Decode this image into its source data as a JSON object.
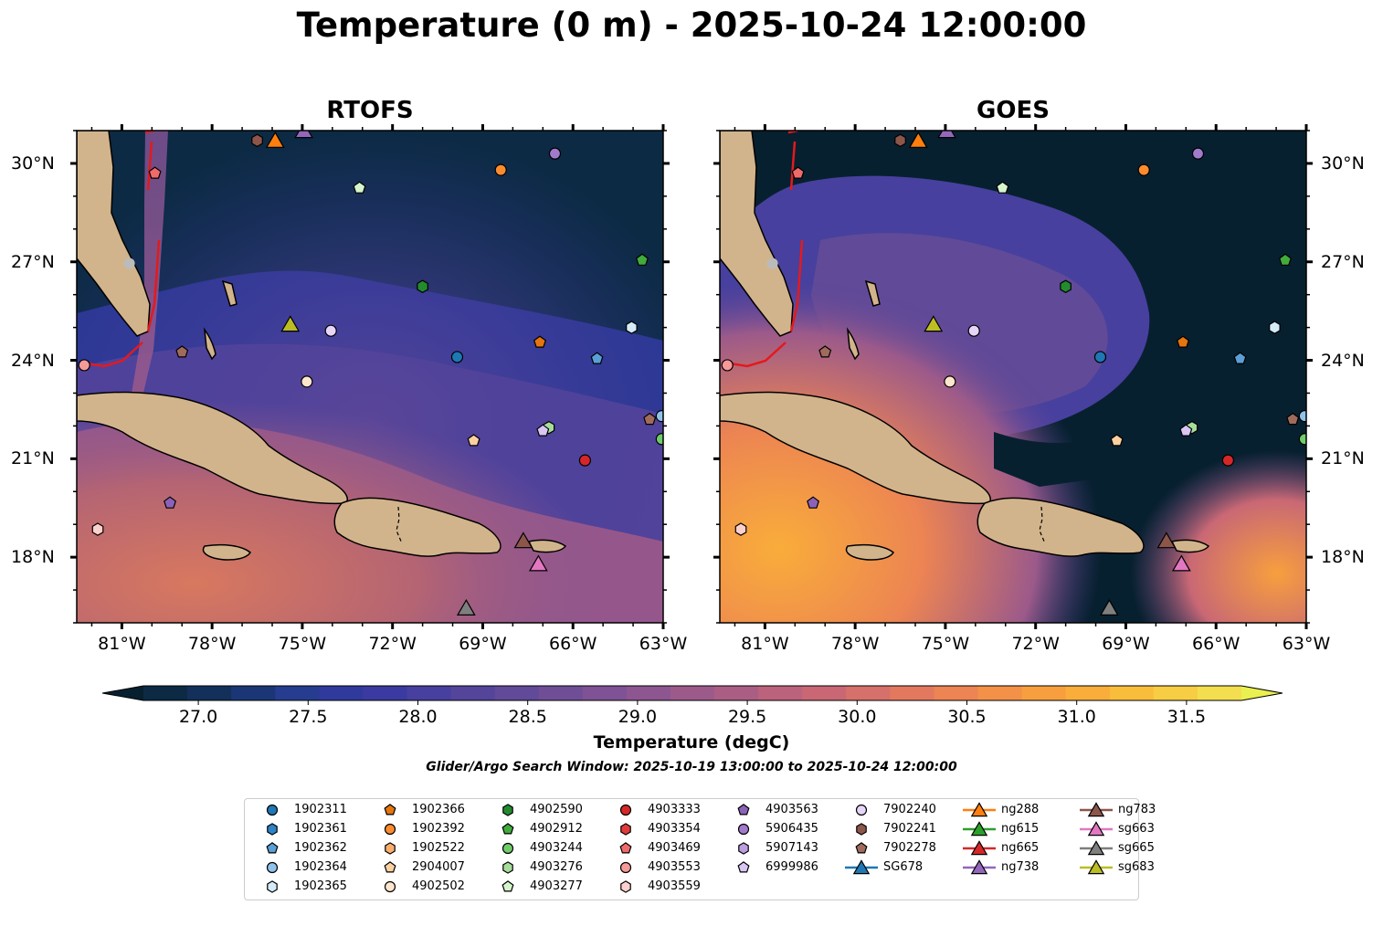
{
  "title": "Temperature (0 m) - 2025-10-24 12:00:00",
  "panels": [
    {
      "title": "RTOFS"
    },
    {
      "title": "GOES"
    }
  ],
  "axes": {
    "lon_ticks": [
      "81°W",
      "78°W",
      "75°W",
      "72°W",
      "69°W",
      "66°W",
      "63°W"
    ],
    "lat_ticks": [
      "30°N",
      "27°N",
      "24°N",
      "21°N",
      "18°N"
    ]
  },
  "colorbar": {
    "label": "Temperature (degC)",
    "min": 26.75,
    "max": 31.75,
    "ticks": [
      "27.0",
      "27.5",
      "28.0",
      "28.5",
      "29.0",
      "29.5",
      "30.0",
      "30.5",
      "31.0",
      "31.5"
    ],
    "colors": [
      "#0c2a44",
      "#13305a",
      "#1b3675",
      "#263c8f",
      "#2f3a9c",
      "#3a3aa0",
      "#47409e",
      "#54449a",
      "#614a98",
      "#704e96",
      "#7e5294",
      "#8d5690",
      "#9c5a8a",
      "#ab5e84",
      "#bb627c",
      "#c96874",
      "#d6706a",
      "#e2795f",
      "#ec8453",
      "#f49148",
      "#f79f3e",
      "#f9ad3a",
      "#f9bd3c",
      "#f7cd44",
      "#f3de4f"
    ],
    "under_color": "#07202f",
    "over_color": "#eaf04f"
  },
  "search_window": "Glider/Argo Search Window: 2025-10-19 13:00:00 to 2025-10-24 12:00:00",
  "legend": [
    {
      "id": "1902311",
      "marker": "circle",
      "color": "#1f77b4"
    },
    {
      "id": "1902361",
      "marker": "hexagon",
      "color": "#2d83c4"
    },
    {
      "id": "1902362",
      "marker": "pentagon",
      "color": "#5a9fd6"
    },
    {
      "id": "1902364",
      "marker": "circle",
      "color": "#8fc3ea"
    },
    {
      "id": "1902365",
      "marker": "hexagon",
      "color": "#d6ebf8"
    },
    {
      "id": "1902366",
      "marker": "pentagon",
      "color": "#e5750f"
    },
    {
      "id": "1902392",
      "marker": "circle",
      "color": "#fb8c2e"
    },
    {
      "id": "1902522",
      "marker": "hexagon",
      "color": "#fbae6b"
    },
    {
      "id": "2904007",
      "marker": "pentagon",
      "color": "#fdd0a2"
    },
    {
      "id": "4902502",
      "marker": "circle",
      "color": "#fee6cc"
    },
    {
      "id": "4902590",
      "marker": "hexagon",
      "color": "#238b2d"
    },
    {
      "id": "4902912",
      "marker": "pentagon",
      "color": "#41ab3c"
    },
    {
      "id": "4903244",
      "marker": "circle",
      "color": "#6fcc6a"
    },
    {
      "id": "4903276",
      "marker": "hexagon",
      "color": "#a6dd9a"
    },
    {
      "id": "4903277",
      "marker": "pentagon",
      "color": "#d6f5cc"
    },
    {
      "id": "4903333",
      "marker": "circle",
      "color": "#d62728"
    },
    {
      "id": "4903354",
      "marker": "hexagon",
      "color": "#e03b3b"
    },
    {
      "id": "4903469",
      "marker": "pentagon",
      "color": "#ef6a6a"
    },
    {
      "id": "4903553",
      "marker": "circle",
      "color": "#f59a98"
    },
    {
      "id": "4903559",
      "marker": "hexagon",
      "color": "#fcd0cc"
    },
    {
      "id": "4903563",
      "marker": "pentagon",
      "color": "#8c62b8"
    },
    {
      "id": "5906435",
      "marker": "circle",
      "color": "#a27acc"
    },
    {
      "id": "5907143",
      "marker": "hexagon",
      "color": "#bc9ee0"
    },
    {
      "id": "6999986",
      "marker": "pentagon",
      "color": "#d9c6f4"
    },
    {
      "id": "7902240",
      "marker": "circle",
      "color": "#e6d4f9"
    },
    {
      "id": "7902241",
      "marker": "hexagon",
      "color": "#8c564b"
    },
    {
      "id": "7902278",
      "marker": "pentagon",
      "color": "#a06b5c"
    },
    {
      "id": "SG678",
      "marker": "triangle",
      "color": "#1f77b4"
    },
    {
      "id": "ng288",
      "marker": "triangle",
      "color": "#ff7f0e"
    },
    {
      "id": "ng615",
      "marker": "triangle",
      "color": "#2ca02c"
    },
    {
      "id": "ng665",
      "marker": "triangle",
      "color": "#d62728"
    },
    {
      "id": "ng738",
      "marker": "triangle",
      "color": "#9467bd"
    },
    {
      "id": "ng783",
      "marker": "triangle",
      "color": "#8c564b"
    },
    {
      "id": "sg663",
      "marker": "triangle",
      "color": "#e377c2"
    },
    {
      "id": "sg665",
      "marker": "triangle",
      "color": "#7f7f7f"
    },
    {
      "id": "sg683",
      "marker": "triangle",
      "color": "#bcbd22"
    }
  ],
  "platforms": [
    {
      "id": "1902311",
      "lon": -69.85,
      "lat": 24.1
    },
    {
      "id": "1902362",
      "lon": -65.2,
      "lat": 24.05
    },
    {
      "id": "1902364",
      "lon": -63.05,
      "lat": 22.3
    },
    {
      "id": "1902365",
      "lon": -64.05,
      "lat": 25.0
    },
    {
      "id": "1902366",
      "lon": -67.1,
      "lat": 24.55
    },
    {
      "id": "1902392",
      "lon": -68.4,
      "lat": 29.8
    },
    {
      "id": "2904007",
      "lon": -69.3,
      "lat": 21.55
    },
    {
      "id": "4902502",
      "lon": -74.85,
      "lat": 23.35
    },
    {
      "id": "4902590",
      "lon": -71.0,
      "lat": 26.25
    },
    {
      "id": "4902912",
      "lon": -63.7,
      "lat": 27.05
    },
    {
      "id": "4903244",
      "lon": -63.05,
      "lat": 21.6
    },
    {
      "id": "4903276",
      "lon": -66.8,
      "lat": 21.95
    },
    {
      "id": "4903277",
      "lon": -73.1,
      "lat": 29.25
    },
    {
      "id": "4903333",
      "lon": -65.6,
      "lat": 20.95
    },
    {
      "id": "4903469",
      "lon": -79.9,
      "lat": 29.7
    },
    {
      "id": "4903553",
      "lon": -82.25,
      "lat": 23.85
    },
    {
      "id": "4903559",
      "lon": -81.8,
      "lat": 18.85
    },
    {
      "id": "4903563",
      "lon": -79.4,
      "lat": 19.65
    },
    {
      "id": "5906435",
      "lon": -66.6,
      "lat": 30.3
    },
    {
      "id": "6999986",
      "lon": -67.0,
      "lat": 21.85
    },
    {
      "id": "7902240",
      "lon": -74.05,
      "lat": 24.9
    },
    {
      "id": "7902241",
      "lon": -76.5,
      "lat": 30.7
    },
    {
      "id": "7902278",
      "lon": -79.0,
      "lat": 24.25
    },
    {
      "id": "7902278",
      "lon": -63.45,
      "lat": 22.2
    },
    {
      "id": "ng288",
      "lon": -75.9,
      "lat": 30.7
    },
    {
      "id": "ng738",
      "lon": -74.95,
      "lat": 31.0
    },
    {
      "id": "ng783",
      "lon": -67.65,
      "lat": 18.5
    },
    {
      "id": "sg663",
      "lon": -67.15,
      "lat": 17.8
    },
    {
      "id": "sg665",
      "lon": -69.55,
      "lat": 16.45
    },
    {
      "id": "sg683",
      "lon": -75.4,
      "lat": 25.1
    },
    {
      "id": "gray-dot",
      "lon": -80.75,
      "lat": 26.95
    }
  ]
}
